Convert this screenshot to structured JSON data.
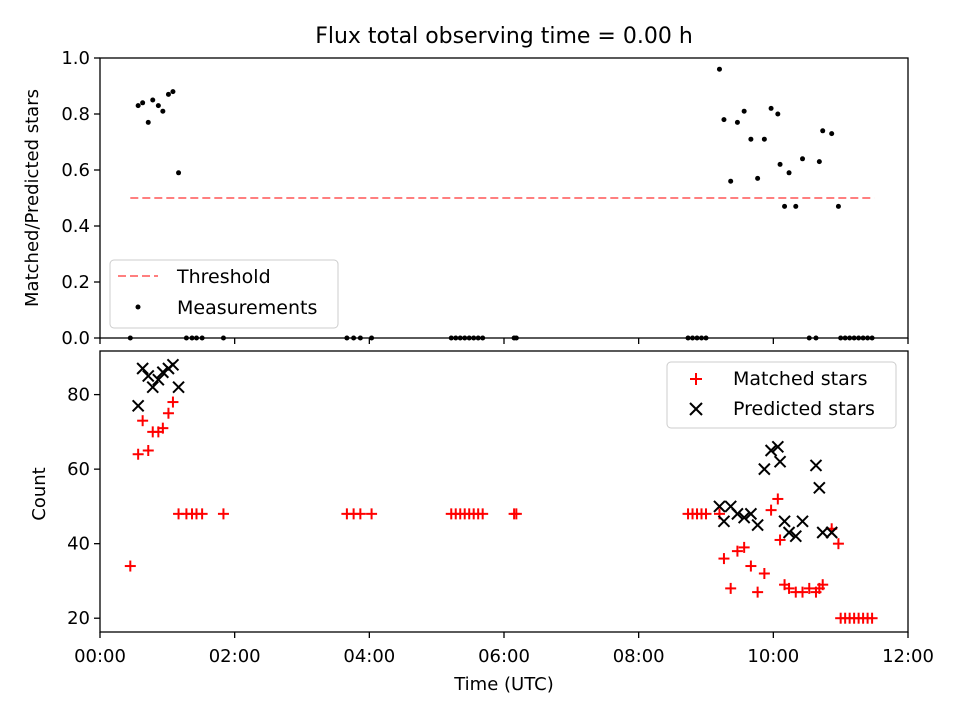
{
  "chart_data": [
    {
      "type": "scatter",
      "title": "Flux total observing time = 0.00 h",
      "ylabel": "Matched/Predicted stars",
      "xlabel": "",
      "xlim": [
        "00:00",
        "12:00"
      ],
      "ylim": [
        0,
        1.0
      ],
      "yticks": [
        "0.0",
        "0.2",
        "0.4",
        "0.6",
        "0.8",
        "1.0"
      ],
      "grid": false,
      "legend_position": "lower-left",
      "threshold": {
        "name": "Threshold",
        "value": 0.5,
        "x_range": [
          "00:27",
          "11:30"
        ],
        "color": "#ff7f7f",
        "style": "dashed"
      },
      "series": [
        {
          "name": "Measurements",
          "color": "#000000",
          "marker": "dot",
          "x": [
            "00:27",
            "00:34",
            "00:38",
            "00:43",
            "00:47",
            "00:52",
            "00:56",
            "01:01",
            "01:05",
            "01:10",
            "01:17",
            "01:22",
            "01:26",
            "01:31",
            "01:50",
            "03:40",
            "03:46",
            "03:52",
            "04:02",
            "05:13",
            "05:17",
            "05:21",
            "05:25",
            "05:29",
            "05:33",
            "05:37",
            "05:41",
            "06:09",
            "06:11",
            "08:44",
            "08:48",
            "08:52",
            "08:56",
            "09:00",
            "09:12",
            "09:16",
            "09:22",
            "09:28",
            "09:34",
            "09:40",
            "09:46",
            "09:52",
            "09:58",
            "10:04",
            "10:06",
            "10:10",
            "10:14",
            "10:20",
            "10:26",
            "10:32",
            "10:38",
            "10:41",
            "10:44",
            "10:52",
            "10:58",
            "11:00",
            "11:04",
            "11:08",
            "11:12",
            "11:16",
            "11:20",
            "11:24",
            "11:28"
          ],
          "values": [
            0,
            0.83,
            0.84,
            0.77,
            0.85,
            0.83,
            0.81,
            0.87,
            0.88,
            0.59,
            0,
            0,
            0,
            0,
            0,
            0,
            0,
            0,
            0,
            0,
            0,
            0,
            0,
            0,
            0,
            0,
            0,
            0,
            0,
            0,
            0,
            0,
            0,
            0,
            0.96,
            0.78,
            0.56,
            0.77,
            0.81,
            0.71,
            0.57,
            0.71,
            0.82,
            0.8,
            0.62,
            0.47,
            0.59,
            0.47,
            0.64,
            0,
            0,
            0.63,
            0.74,
            0.73,
            0.47,
            0,
            0,
            0,
            0,
            0,
            0,
            0,
            0
          ]
        }
      ]
    },
    {
      "type": "scatter",
      "title": "",
      "xlabel": "Time (UTC)",
      "ylabel": "Count",
      "xlim": [
        "00:00",
        "12:00"
      ],
      "xticks": [
        "00:00",
        "02:00",
        "04:00",
        "06:00",
        "08:00",
        "10:00",
        "12:00"
      ],
      "yticks": [
        "20",
        "40",
        "60",
        "80"
      ],
      "ylim": [
        16.3,
        91.7
      ],
      "grid": false,
      "legend_position": "upper-right",
      "series": [
        {
          "name": "Matched stars",
          "color": "#ff0000",
          "marker": "plus",
          "x": [
            "00:27",
            "00:34",
            "00:38",
            "00:43",
            "00:47",
            "00:52",
            "00:56",
            "01:01",
            "01:05",
            "01:10",
            "01:17",
            "01:22",
            "01:26",
            "01:31",
            "01:50",
            "03:40",
            "03:46",
            "03:52",
            "04:02",
            "05:13",
            "05:17",
            "05:21",
            "05:25",
            "05:29",
            "05:33",
            "05:37",
            "05:41",
            "06:09",
            "06:11",
            "08:44",
            "08:48",
            "08:52",
            "08:56",
            "09:00",
            "09:12",
            "09:16",
            "09:22",
            "09:28",
            "09:34",
            "09:40",
            "09:46",
            "09:52",
            "09:58",
            "10:04",
            "10:06",
            "10:10",
            "10:14",
            "10:20",
            "10:26",
            "10:32",
            "10:38",
            "10:41",
            "10:44",
            "10:52",
            "10:58",
            "11:00",
            "11:04",
            "11:08",
            "11:12",
            "11:16",
            "11:20",
            "11:24",
            "11:28"
          ],
          "values": [
            34,
            64,
            73,
            65,
            70,
            70,
            71,
            75,
            78,
            48,
            48,
            48,
            48,
            48,
            48,
            48,
            48,
            48,
            48,
            48,
            48,
            48,
            48,
            48,
            48,
            48,
            48,
            48,
            48,
            48,
            48,
            48,
            48,
            48,
            48,
            36,
            28,
            38,
            39,
            34,
            27,
            32,
            49,
            52,
            41,
            29,
            28,
            27,
            27,
            28,
            27,
            28,
            29,
            44,
            40,
            20,
            20,
            20,
            20,
            20,
            20,
            20,
            20
          ]
        },
        {
          "name": "Predicted stars",
          "color": "#000000",
          "marker": "x",
          "x": [
            "00:34",
            "00:38",
            "00:43",
            "00:47",
            "00:52",
            "00:56",
            "01:01",
            "01:05",
            "01:10",
            "09:12",
            "09:16",
            "09:22",
            "09:28",
            "09:34",
            "09:40",
            "09:46",
            "09:52",
            "09:58",
            "10:04",
            "10:06",
            "10:10",
            "10:14",
            "10:20",
            "10:26",
            "10:38",
            "10:41",
            "10:44",
            "10:52"
          ],
          "values": [
            77,
            87,
            85,
            82,
            84,
            86,
            87,
            88,
            82,
            50,
            46,
            50,
            48,
            47,
            48,
            45,
            60,
            65,
            66,
            62,
            46,
            43,
            42,
            46,
            61,
            55,
            43,
            43
          ]
        }
      ]
    }
  ]
}
